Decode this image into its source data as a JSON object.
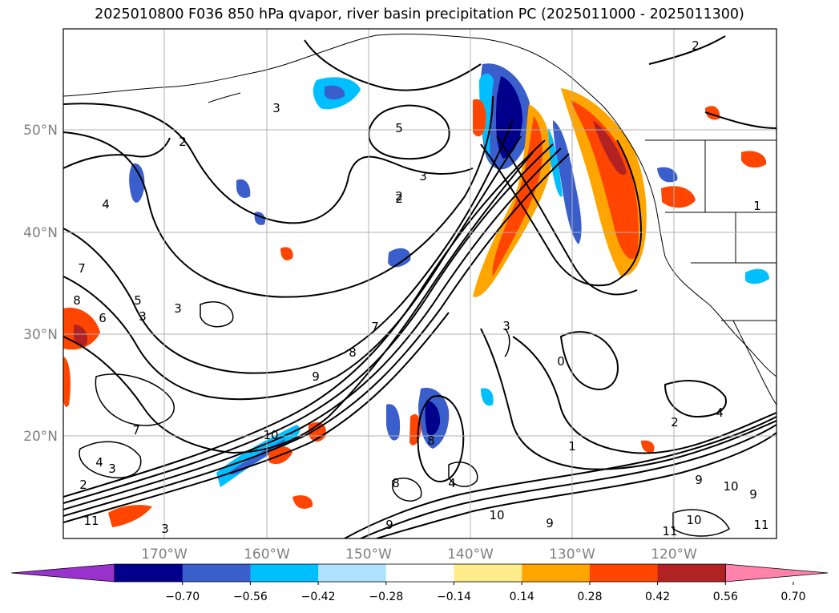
{
  "title": "2025010800 F036 850 hPa qvapor, river basin precipitation PC (2025011000 - 2025011300)",
  "lat_labels": [
    "50°N",
    "40°N",
    "30°N",
    "20°N"
  ],
  "lon_labels": [
    "170°W",
    "160°W",
    "150°W",
    "140°W",
    "130°W",
    "120°W"
  ],
  "colorbar": {
    "ticks": [
      "−0.70",
      "−0.56",
      "−0.42",
      "−0.28",
      "−0.14",
      "0.14",
      "0.28",
      "0.42",
      "0.56",
      "0.70"
    ],
    "colors": [
      "#9932cc",
      "#00008b",
      "#3a5fcd",
      "#00bfff",
      "#b0e2ff",
      "#ffffff",
      "#ffec8b",
      "#ffa500",
      "#ff4500",
      "#b22222",
      "#ff82ab"
    ]
  },
  "contour_labels": [
    "2",
    "3",
    "5",
    "3",
    "2",
    "7",
    "6",
    "5",
    "3",
    "8",
    "7",
    "4",
    "3",
    "2",
    "11",
    "10",
    "9",
    "8",
    "7",
    "3",
    "0",
    "1",
    "2",
    "4",
    "8",
    "9",
    "10",
    "9",
    "11",
    "10",
    "11",
    "8",
    "4",
    "3",
    "9",
    "10",
    "9",
    "2",
    "4",
    "3",
    "2",
    "1"
  ]
}
